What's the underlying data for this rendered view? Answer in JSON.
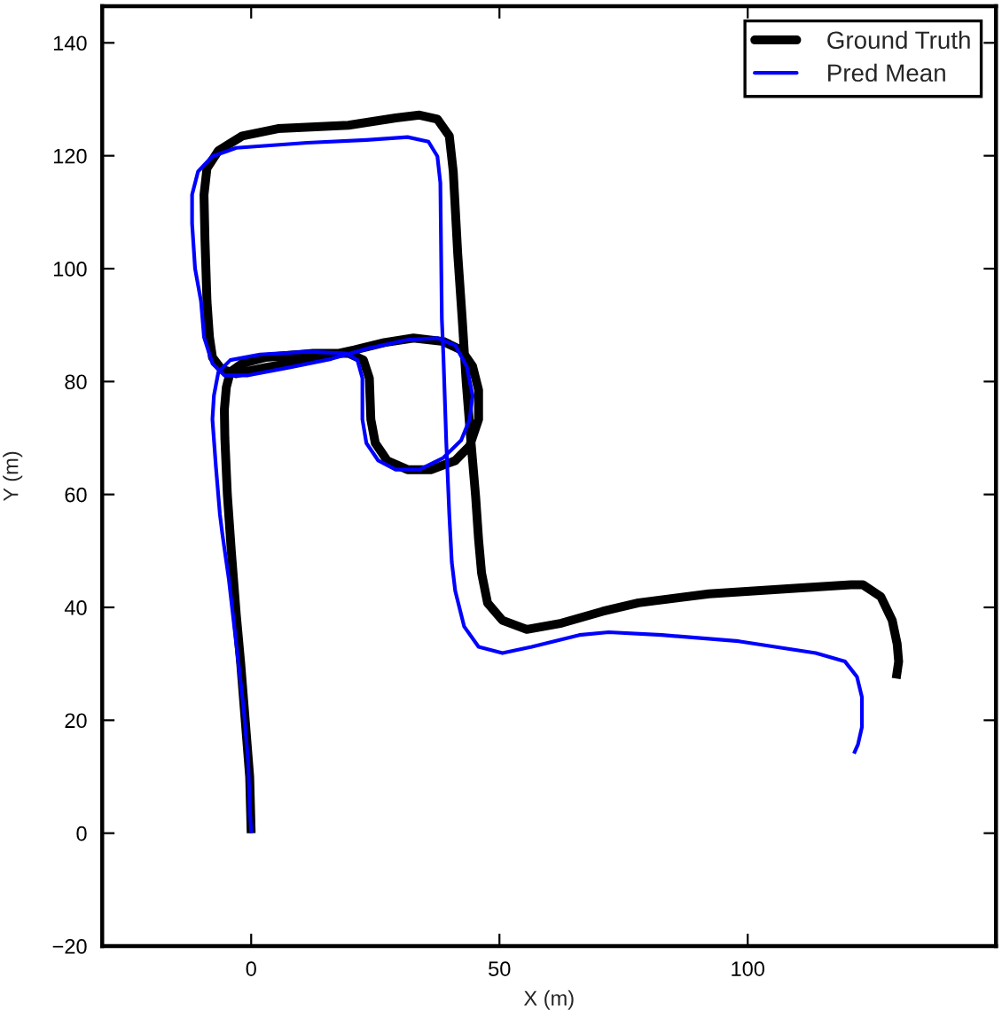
{
  "chart_data": {
    "type": "line",
    "xlabel": "X (m)",
    "ylabel": "Y (m)",
    "xlim": [
      -30,
      150
    ],
    "ylim": [
      -20,
      146.5
    ],
    "xticks": [
      0,
      50,
      100
    ],
    "yticks": [
      {
        "value": -20,
        "label": "−20"
      },
      0,
      20,
      40,
      60,
      80,
      100,
      120,
      140
    ],
    "legend": "top right",
    "line_style": "solid",
    "marker": "none",
    "series": [
      {
        "name": "Ground Truth",
        "color": "#000000",
        "x": [
          0,
          -0.3,
          -1.2,
          -2.1,
          -3,
          -4,
          -4.8,
          -5.3,
          -5.4,
          -5.0,
          -4.2,
          -1.8,
          3.0,
          12.5,
          19.6,
          22.6,
          23.8,
          24.1,
          25.0,
          27.4,
          31.5,
          36.3,
          41.1,
          44.0,
          45.8,
          45.8,
          44.6,
          42.3,
          38.7,
          32.7,
          26.8,
          20.8,
          11.3,
          3.0,
          -3.0,
          -6.0,
          -7.8,
          -8.4,
          -8.9,
          -9.3,
          -9.5,
          -8.9,
          -6.6,
          -1.8,
          5.4,
          19.6,
          29.1,
          33.9,
          37.5,
          39.9,
          40.7,
          41.6,
          42.5,
          43.3,
          44.2,
          45.2,
          45.8,
          46.4,
          47.6,
          50.6,
          55.5,
          62.5,
          70.8,
          78.0,
          92.2,
          110.1,
          120.8,
          123.2,
          126.8,
          129.1,
          130.1,
          130.4,
          129.9
        ],
        "values": [
          0,
          10,
          20,
          30,
          38.7,
          50,
          60,
          70,
          75,
          79,
          81.7,
          83.2,
          84.3,
          85.0,
          85.0,
          83.8,
          80.6,
          73.3,
          69.1,
          66.0,
          64.4,
          64.4,
          66.0,
          68.6,
          73.3,
          78.5,
          82.7,
          85.6,
          87.1,
          87.7,
          86.9,
          85.6,
          83.8,
          82.5,
          81.4,
          82.2,
          84.3,
          87.9,
          94.2,
          105,
          113.1,
          117.8,
          120.9,
          123.5,
          124.8,
          125.4,
          126.7,
          127.2,
          126.5,
          123.5,
          117.2,
          102.6,
          91.1,
          80,
          70,
          59.7,
          52,
          46.1,
          40.8,
          37.7,
          36.1,
          37.2,
          39.3,
          40.8,
          42.4,
          43.4,
          44.0,
          44.0,
          41.9,
          37.7,
          33.5,
          30.4,
          27.4
        ]
      },
      {
        "name": "Pred Mean",
        "color": "#0000ff",
        "x": [
          0,
          -0.3,
          -0.6,
          -1.5,
          -3,
          -4.5,
          -5.8,
          -6.3,
          -7.1,
          -7.8,
          -7.5,
          -6.6,
          -4.2,
          1.8,
          11.3,
          19.0,
          21.4,
          22.4,
          22.4,
          23.2,
          25.6,
          29.1,
          33.9,
          38.7,
          42.3,
          44.0,
          44.6,
          43.4,
          41.1,
          37.5,
          31.5,
          23.2,
          16.1,
          7.7,
          -0.6,
          -5.4,
          -7.8,
          -9.5,
          -10.1,
          -11.3,
          -11.9,
          -11.9,
          -10.7,
          -7.8,
          -3.0,
          11.3,
          23.2,
          31.5,
          35.7,
          37.5,
          38.1,
          38.4,
          38.7,
          39.3,
          39.9,
          40.4,
          41.1,
          42.9,
          45.8,
          50.6,
          56.5,
          66.1,
          72.0,
          82.7,
          98.2,
          113.7,
          119.6,
          122.0,
          123.0,
          123.0,
          122.2,
          121.4
        ],
        "values": [
          0,
          5,
          12.6,
          22,
          33.5,
          45,
          53,
          56.5,
          64.9,
          73.3,
          77.5,
          81.7,
          83.8,
          84.8,
          85.3,
          85.0,
          83.8,
          80.6,
          73.3,
          69.1,
          66.0,
          64.4,
          64.4,
          66.5,
          69.6,
          73.3,
          77.5,
          82.7,
          86.4,
          87.7,
          87.4,
          85.8,
          84.0,
          82.5,
          81.1,
          81.1,
          83.2,
          87.9,
          94.2,
          100,
          108,
          113.1,
          117.2,
          119.9,
          121.4,
          122.3,
          122.8,
          123.3,
          122.5,
          119.9,
          115.2,
          91.1,
          84.8,
          69.1,
          56.5,
          48,
          42.9,
          36.6,
          33.0,
          31.9,
          33.0,
          35.1,
          35.6,
          35.1,
          34.0,
          31.9,
          30.4,
          27.7,
          24.1,
          18.8,
          15.7,
          14.1
        ]
      }
    ]
  }
}
